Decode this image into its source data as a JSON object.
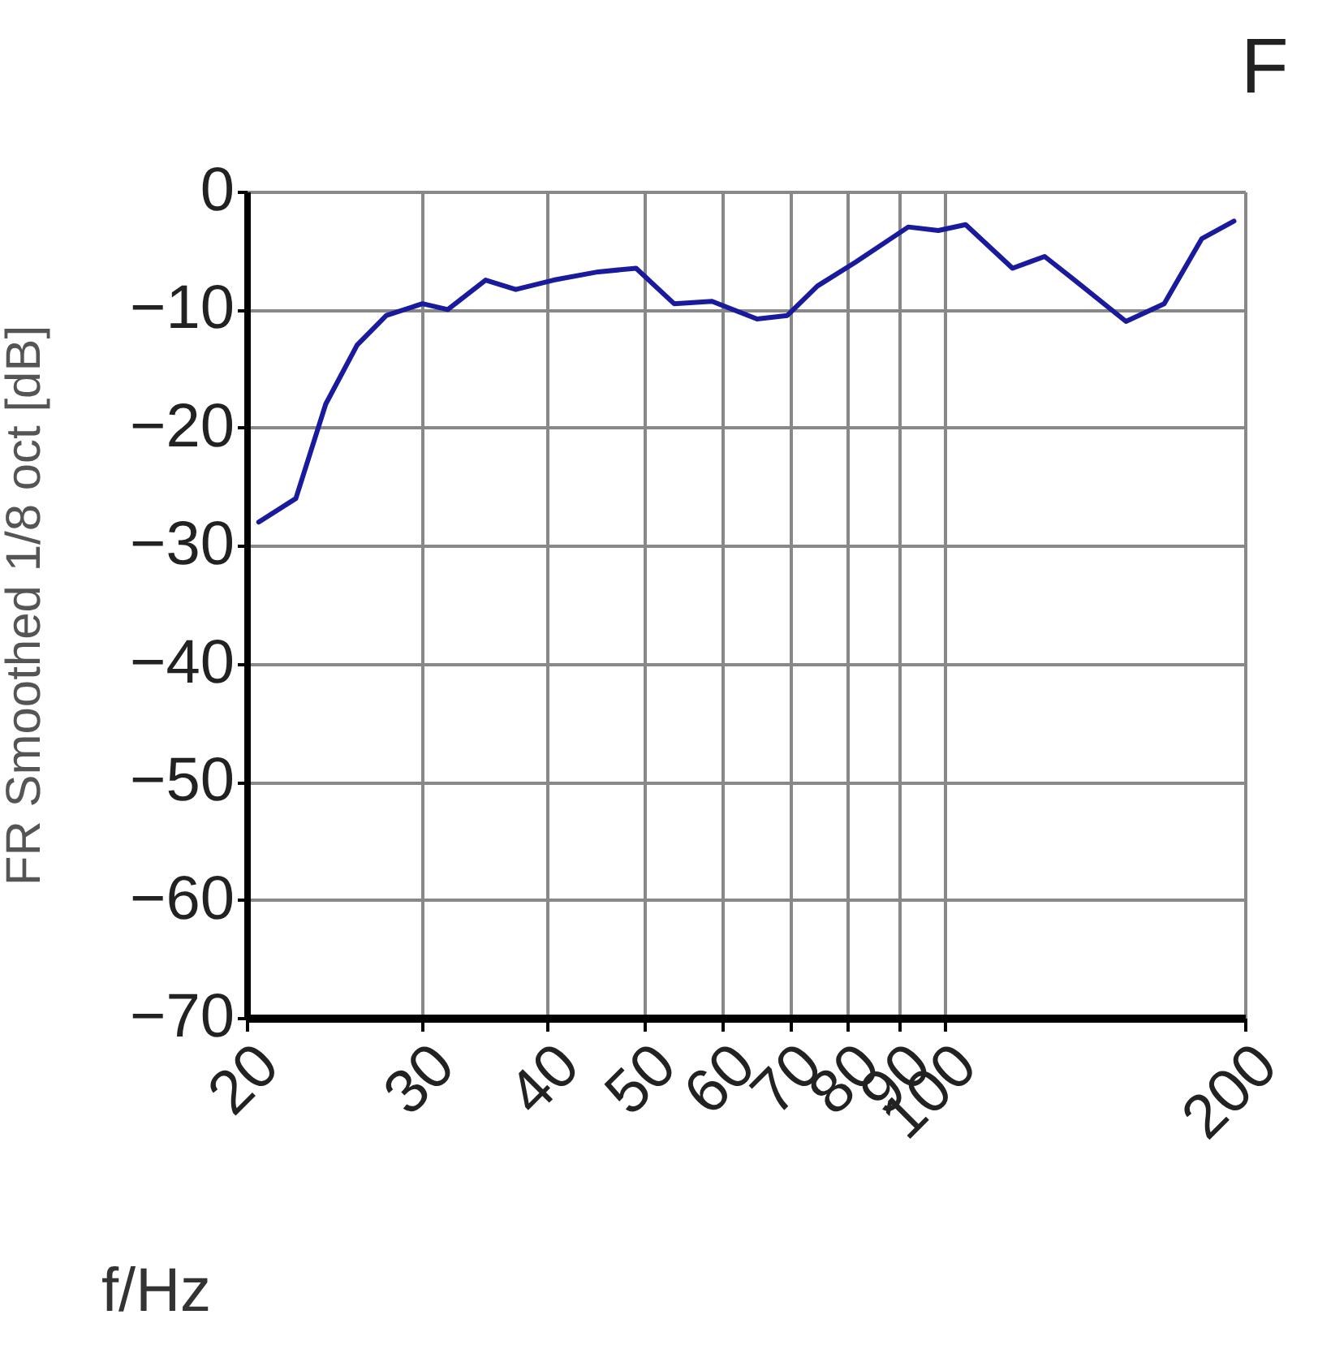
{
  "chart_data": {
    "type": "line",
    "title": "F",
    "xlabel": "f/Hz",
    "ylabel": "FR Smoothed 1/8 oct [dB]",
    "log": "x",
    "grid": true,
    "marker": "none",
    "line_style": "solid",
    "xlim": [
      20,
      200
    ],
    "xticks": [
      20,
      30,
      40,
      50,
      60,
      70,
      80,
      90,
      100,
      200
    ],
    "ylim": [
      -70,
      0
    ],
    "yticks": [
      -70,
      -60,
      -50,
      -40,
      -30,
      -20,
      -10,
      0
    ],
    "series": [
      {
        "color": "#1a1a9c",
        "x": [
          20.56,
          22.4,
          24.0,
          25.8,
          27.6,
          30.0,
          31.8,
          34.7,
          37.2,
          40.6,
          45.0,
          49.1,
          53.6,
          58.5,
          64.9,
          69.6,
          74.6,
          81.4,
          92.0,
          98.6,
          105,
          117,
          126,
          135,
          152,
          166,
          181,
          195
        ],
        "values": [
          -28,
          -26,
          -18,
          -13,
          -10.5,
          -9.5,
          -10,
          -7.5,
          -8.3,
          -7.5,
          -6.8,
          -6.5,
          -9.5,
          -9.3,
          -10.8,
          -10.5,
          -8,
          -6,
          -3,
          -3.3,
          -2.8,
          -6.5,
          -5.5,
          -7.5,
          -11,
          -9.5,
          -4,
          -2.5
        ]
      }
    ]
  }
}
